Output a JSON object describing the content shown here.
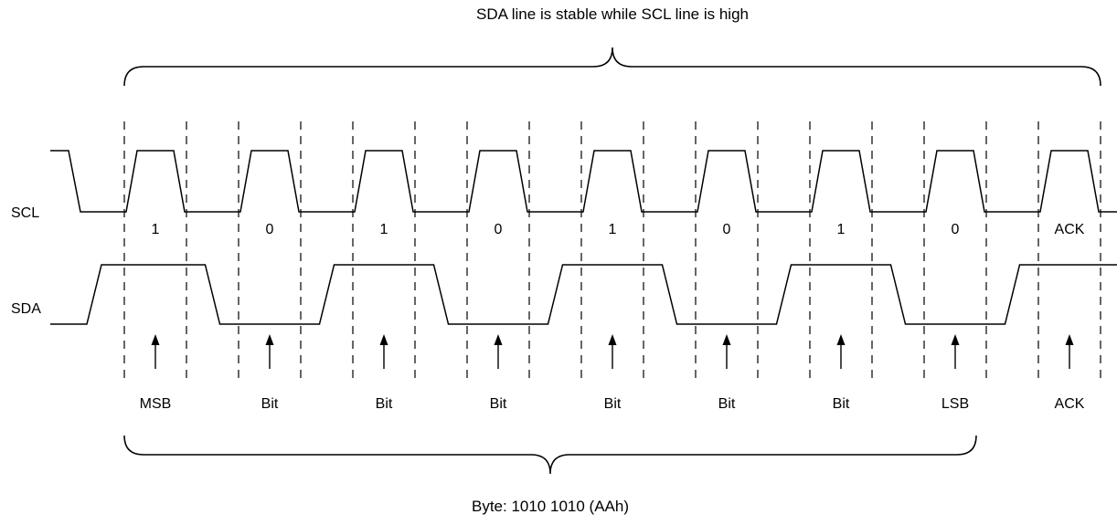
{
  "title": "SDA line is stable while SCL line is high",
  "bottom_label": "Byte: 1010 1010 (AAh)",
  "signals": {
    "clock_label": "SCL",
    "data_label": "SDA"
  },
  "bits": [
    {
      "value": "1",
      "arrow_label": "MSB",
      "sda": 1
    },
    {
      "value": "0",
      "arrow_label": "Bit",
      "sda": 0
    },
    {
      "value": "1",
      "arrow_label": "Bit",
      "sda": 1
    },
    {
      "value": "0",
      "arrow_label": "Bit",
      "sda": 0
    },
    {
      "value": "1",
      "arrow_label": "Bit",
      "sda": 1
    },
    {
      "value": "0",
      "arrow_label": "Bit",
      "sda": 0
    },
    {
      "value": "1",
      "arrow_label": "Bit",
      "sda": 1
    },
    {
      "value": "0",
      "arrow_label": "LSB",
      "sda": 0
    },
    {
      "value": "ACK",
      "arrow_label": "ACK",
      "sda": 1
    }
  ],
  "colors": {
    "line": "#000000",
    "background": "#ffffff"
  }
}
